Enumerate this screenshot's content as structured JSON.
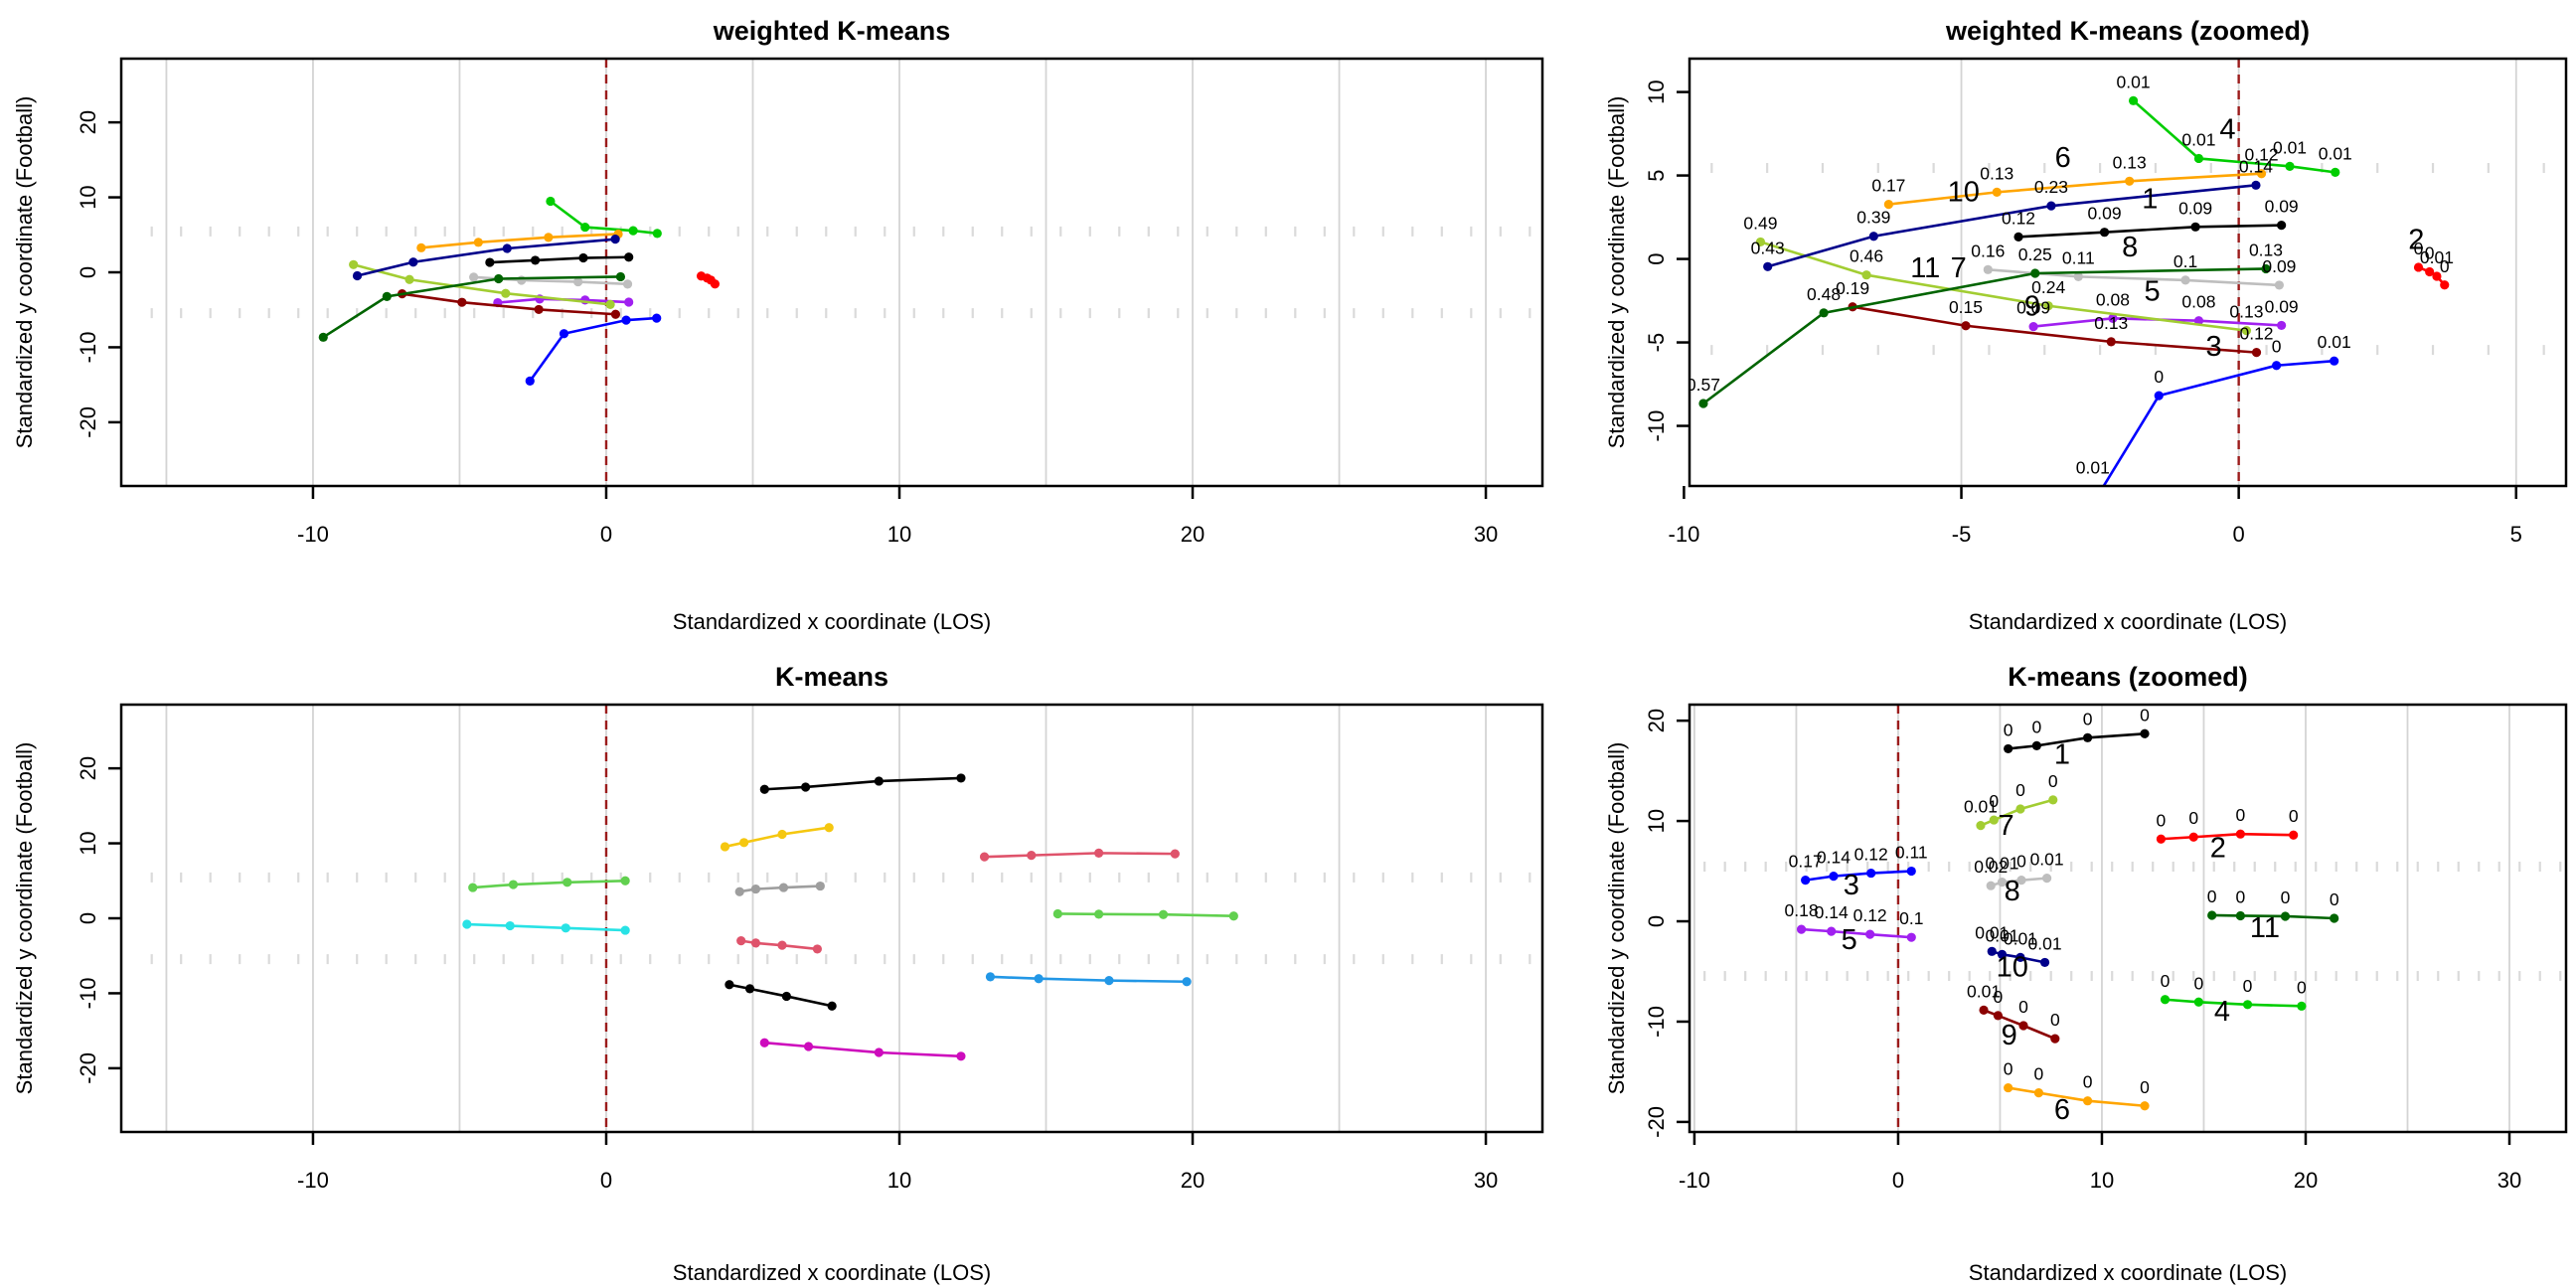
{
  "figure": {
    "background": "#ffffff",
    "x_axis_title": "Standardized x coordinate (LOS)",
    "y_axis_title": "Standardized y coordinate (Football)"
  },
  "colors": {
    "axis": "#000000",
    "grid": "#d4d4d4",
    "hash": "#dadada",
    "los_line": "#9b1c1c",
    "palettes": {
      "custom": {
        "1": "#000000",
        "2": "#ff0000",
        "3": "#0000ff",
        "4": "#00cd00",
        "5": "#a020f0",
        "6": "#ffa500",
        "7": "#a2cd32",
        "8": "#bebebe",
        "9": "#8b0000",
        "10": "#00008b",
        "11": "#006400"
      },
      "default": {
        "1": "#000000",
        "2": "#df536b",
        "3": "#61d04f",
        "4": "#2297e6",
        "5": "#28e2e5",
        "6": "#cd0bbc",
        "7": "#f5c710",
        "8": "#9e9e9e",
        "9": "#000000",
        "10": "#df536b",
        "11": "#61d04f"
      }
    }
  },
  "field": {
    "hash_rows_y": [
      5.45,
      -5.45
    ],
    "hash_step": 1,
    "grid_step": 5,
    "los_x": 0
  },
  "chart_data": [
    {
      "id": "weighted",
      "type": "line",
      "title": "weighted K-means",
      "xlabel": "Standardized x coordinate (LOS)",
      "ylabel": "Standardized y coordinate (Football)",
      "xlim": [
        -16.54,
        31.93
      ],
      "ylim": [
        -28.5,
        28.5
      ],
      "xticks": [
        "-10",
        "0",
        "10",
        "20",
        "30"
      ],
      "xtick_vals": [
        -10,
        0,
        10,
        20,
        30
      ],
      "yticks": [
        "-20",
        "-10",
        "0",
        "10",
        "20"
      ],
      "ytick_vals": [
        -20,
        -10,
        0,
        10,
        20
      ],
      "grid_x": [
        -15,
        -10,
        -5,
        0,
        5,
        10,
        15,
        20,
        25,
        30
      ],
      "hash_x": [
        -15.5,
        31.5
      ],
      "show_point_labels": false,
      "show_cluster_numbers": false,
      "palette": "custom",
      "series": "weighted",
      "legend": "none",
      "grid": true
    },
    {
      "id": "weighted_zoomed",
      "type": "line",
      "title": "weighted K-means (zoomed)",
      "xlabel": "Standardized x coordinate (LOS)",
      "ylabel": "Standardized y coordinate (Football)",
      "xlim": [
        -9.9,
        5.9
      ],
      "ylim": [
        -13.6,
        12.0
      ],
      "xticks": [
        "-10",
        "-5",
        "0",
        "5"
      ],
      "xtick_vals": [
        -10,
        -5,
        0,
        5
      ],
      "yticks": [
        "-10",
        "-5",
        "0",
        "5",
        "10"
      ],
      "ytick_vals": [
        -10,
        -5,
        0,
        5,
        10
      ],
      "grid_x": [
        -10,
        -5,
        0,
        5
      ],
      "hash_x": [
        -9.5,
        5.5
      ],
      "show_point_labels": true,
      "show_cluster_numbers": true,
      "palette": "custom",
      "series": "weighted",
      "legend": "none",
      "grid": true
    },
    {
      "id": "kmeans",
      "type": "line",
      "title": "K-means",
      "xlabel": "Standardized x coordinate (LOS)",
      "ylabel": "Standardized y coordinate (Football)",
      "xlim": [
        -16.54,
        31.93
      ],
      "ylim": [
        -28.5,
        28.5
      ],
      "xticks": [
        "-10",
        "0",
        "10",
        "20",
        "30"
      ],
      "xtick_vals": [
        -10,
        0,
        10,
        20,
        30
      ],
      "yticks": [
        "-20",
        "-10",
        "0",
        "10",
        "20"
      ],
      "ytick_vals": [
        -20,
        -10,
        0,
        10,
        20
      ],
      "grid_x": [
        -15,
        -10,
        -5,
        0,
        5,
        10,
        15,
        20,
        25,
        30
      ],
      "hash_x": [
        -15.5,
        31.5
      ],
      "show_point_labels": false,
      "show_cluster_numbers": false,
      "palette": "default",
      "series": "kmeans",
      "legend": "none",
      "grid": true
    },
    {
      "id": "kmeans_zoomed",
      "type": "line",
      "title": "K-means (zoomed)",
      "xlabel": "Standardized x coordinate (LOS)",
      "ylabel": "Standardized y coordinate (Football)",
      "xlim": [
        -10.24,
        32.78
      ],
      "ylim": [
        -21.0,
        21.6
      ],
      "xticks": [
        "-10",
        "0",
        "10",
        "20",
        "30"
      ],
      "xtick_vals": [
        -10,
        0,
        10,
        20,
        30
      ],
      "yticks": [
        "-20",
        "-10",
        "0",
        "10",
        "20"
      ],
      "ytick_vals": [
        -20,
        -10,
        0,
        10,
        20
      ],
      "grid_x": [
        -10,
        -5,
        0,
        5,
        10,
        15,
        20,
        25,
        30
      ],
      "hash_x": [
        -9.5,
        32.5
      ],
      "show_point_labels": true,
      "show_cluster_numbers": true,
      "palette": "custom",
      "series": "kmeans",
      "legend": "none",
      "grid": true
    }
  ],
  "series": {
    "weighted": [
      {
        "cluster": "1",
        "points": [
          [
            -3.97,
            1.32
          ],
          [
            -2.42,
            1.6
          ],
          [
            -0.78,
            1.92
          ],
          [
            0.77,
            2.02
          ]
        ],
        "labels": [
          "0.12",
          "0.09",
          "0.09",
          "0.09"
        ],
        "num_pos": [
          -1.6,
          3.05
        ]
      },
      {
        "cluster": "2",
        "points": [
          [
            3.24,
            -0.5
          ],
          [
            3.44,
            -0.77
          ],
          [
            3.57,
            -1.04
          ],
          [
            3.71,
            -1.56
          ]
        ],
        "labels": [
          "0",
          "0",
          "0.01",
          "0"
        ],
        "num_pos": [
          3.2,
          0.6
        ]
      },
      {
        "cluster": "3",
        "points": [
          [
            -2.6,
            -14.5
          ],
          [
            -1.44,
            -8.19
          ],
          [
            0.68,
            -6.38
          ],
          [
            1.72,
            -6.11
          ]
        ],
        "labels": [
          "0.01",
          "0",
          "0",
          "0.01"
        ],
        "label_pos": [
          [
            -2.63,
            -12.85
          ],
          null,
          null,
          null
        ],
        "num_pos": [
          -0.45,
          -5.8
        ]
      },
      {
        "cluster": "4",
        "points": [
          [
            -1.9,
            9.48
          ],
          [
            -0.72,
            6.02
          ],
          [
            0.92,
            5.55
          ],
          [
            1.74,
            5.19
          ]
        ],
        "labels": [
          "0.01",
          "0.01",
          "0.01",
          "0.01"
        ],
        "num_pos": [
          -0.2,
          7.2
        ]
      },
      {
        "cluster": "5",
        "points": [
          [
            -3.7,
            -4.05
          ],
          [
            -2.27,
            -3.56
          ],
          [
            -0.72,
            -3.7
          ],
          [
            0.77,
            -3.98
          ]
        ],
        "labels": [
          "0.09",
          "0.08",
          "0.08",
          "0.09"
        ],
        "num_pos": [
          -1.56,
          -2.5
        ]
      },
      {
        "cluster": "6",
        "points": [
          [
            -6.31,
            3.27
          ],
          [
            -4.36,
            4.0
          ],
          [
            -1.97,
            4.66
          ],
          [
            0.41,
            5.11
          ]
        ],
        "labels": [
          "0.17",
          "0.13",
          "0.13",
          "0.12"
        ],
        "num_pos": [
          -3.17,
          5.5
        ]
      },
      {
        "cluster": "7",
        "points": [
          [
            -8.62,
            1.02
          ],
          [
            -6.71,
            -0.96
          ],
          [
            -3.43,
            -2.81
          ],
          [
            0.14,
            -4.29
          ]
        ],
        "labels": [
          "0.49",
          "0.46",
          "0.24",
          "0.13"
        ],
        "num_pos": [
          -5.05,
          -1.1
        ]
      },
      {
        "cluster": "8",
        "points": [
          [
            -4.52,
            -0.64
          ],
          [
            -2.89,
            -1.06
          ],
          [
            -0.96,
            -1.27
          ],
          [
            0.73,
            -1.57
          ]
        ],
        "labels": [
          "0.16",
          "0.11",
          "0.1",
          "0.09"
        ],
        "num_pos": [
          -1.96,
          0.15
        ]
      },
      {
        "cluster": "9",
        "points": [
          [
            -6.96,
            -2.87
          ],
          [
            -4.92,
            -4.0
          ],
          [
            -2.3,
            -4.96
          ],
          [
            0.32,
            -5.6
          ]
        ],
        "labels": [
          "0.19",
          "0.15",
          "0.13",
          "0.12"
        ],
        "num_pos": [
          -3.72,
          -3.4
        ]
      },
      {
        "cluster": "10",
        "points": [
          [
            -8.49,
            -0.46
          ],
          [
            -6.58,
            1.36
          ],
          [
            -3.38,
            3.18
          ],
          [
            0.31,
            4.42
          ]
        ],
        "labels": [
          "0.43",
          "0.39",
          "0.23",
          "0.14"
        ],
        "num_pos": [
          -4.96,
          3.45
        ]
      },
      {
        "cluster": "11",
        "points": [
          [
            -9.65,
            -8.66
          ],
          [
            -7.48,
            -3.23
          ],
          [
            -3.67,
            -0.86
          ],
          [
            0.49,
            -0.59
          ]
        ],
        "labels": [
          "0.57",
          "0.48",
          "0.25",
          "0.13"
        ],
        "num_pos": [
          -5.65,
          -1.1
        ]
      }
    ],
    "kmeans": [
      {
        "cluster": "1",
        "points": [
          [
            5.4,
            17.2
          ],
          [
            6.8,
            17.5
          ],
          [
            9.3,
            18.3
          ],
          [
            12.1,
            18.7
          ]
        ],
        "labels": [
          "0",
          "0",
          "0",
          "0"
        ],
        "num_pos": [
          8.05,
          15.7
        ]
      },
      {
        "cluster": "2",
        "points": [
          [
            12.9,
            8.2
          ],
          [
            14.5,
            8.4
          ],
          [
            16.8,
            8.7
          ],
          [
            19.4,
            8.6
          ]
        ],
        "labels": [
          "0",
          "0",
          "0",
          "0"
        ],
        "num_pos": [
          15.7,
          6.4
        ]
      },
      {
        "cluster": "3",
        "points": [
          [
            -4.55,
            4.1
          ],
          [
            -3.17,
            4.5
          ],
          [
            -1.33,
            4.8
          ],
          [
            0.65,
            5.0
          ]
        ],
        "labels": [
          "0.17",
          "0.14",
          "0.12",
          "0.11"
        ],
        "num_pos": [
          -2.3,
          2.7
        ]
      },
      {
        "cluster": "4",
        "points": [
          [
            13.1,
            -7.8
          ],
          [
            14.75,
            -8.05
          ],
          [
            17.15,
            -8.3
          ],
          [
            19.8,
            -8.45
          ]
        ],
        "labels": [
          "0",
          "0",
          "0",
          "0"
        ],
        "num_pos": [
          15.9,
          -9.9
        ]
      },
      {
        "cluster": "5",
        "points": [
          [
            -4.75,
            -0.8
          ],
          [
            -3.28,
            -1.0
          ],
          [
            -1.38,
            -1.3
          ],
          [
            0.65,
            -1.6
          ]
        ],
        "labels": [
          "0.18",
          "0.14",
          "0.12",
          "0.1"
        ],
        "num_pos": [
          -2.4,
          -2.75
        ]
      },
      {
        "cluster": "6",
        "points": [
          [
            5.4,
            -16.6
          ],
          [
            6.9,
            -17.1
          ],
          [
            9.3,
            -17.9
          ],
          [
            12.1,
            -18.4
          ]
        ],
        "labels": [
          "0",
          "0",
          "0",
          "0"
        ],
        "num_pos": [
          8.05,
          -19.7
        ]
      },
      {
        "cluster": "7",
        "points": [
          [
            4.05,
            9.55
          ],
          [
            4.7,
            10.1
          ],
          [
            6.0,
            11.2
          ],
          [
            7.6,
            12.1
          ]
        ],
        "labels": [
          "0.01",
          "0",
          "0",
          "0"
        ],
        "num_pos": [
          5.3,
          8.6
        ]
      },
      {
        "cluster": "8",
        "points": [
          [
            4.55,
            3.55
          ],
          [
            5.1,
            3.9
          ],
          [
            6.05,
            4.1
          ],
          [
            7.3,
            4.3
          ]
        ],
        "labels": [
          "0.02",
          "0.01",
          "0",
          "0.01"
        ],
        "num_pos": [
          5.6,
          2.1
        ]
      },
      {
        "cluster": "9",
        "points": [
          [
            4.2,
            -8.85
          ],
          [
            4.9,
            -9.4
          ],
          [
            6.15,
            -10.4
          ],
          [
            7.7,
            -11.7
          ]
        ],
        "labels": [
          "0.01",
          "0",
          "0",
          "0"
        ],
        "num_pos": [
          5.45,
          -12.3
        ]
      },
      {
        "cluster": "10",
        "points": [
          [
            4.6,
            -3.0
          ],
          [
            5.1,
            -3.3
          ],
          [
            6.0,
            -3.6
          ],
          [
            7.2,
            -4.1
          ]
        ],
        "labels": [
          "0.01",
          "0.01",
          "0.01",
          "0.01"
        ],
        "num_pos": [
          5.6,
          -5.5
        ]
      },
      {
        "cluster": "11",
        "points": [
          [
            15.4,
            0.6
          ],
          [
            16.8,
            0.55
          ],
          [
            19.0,
            0.5
          ],
          [
            21.4,
            0.3
          ]
        ],
        "labels": [
          "0",
          "0",
          "0",
          "0"
        ],
        "num_pos": [
          18.0,
          -1.6
        ]
      }
    ]
  }
}
